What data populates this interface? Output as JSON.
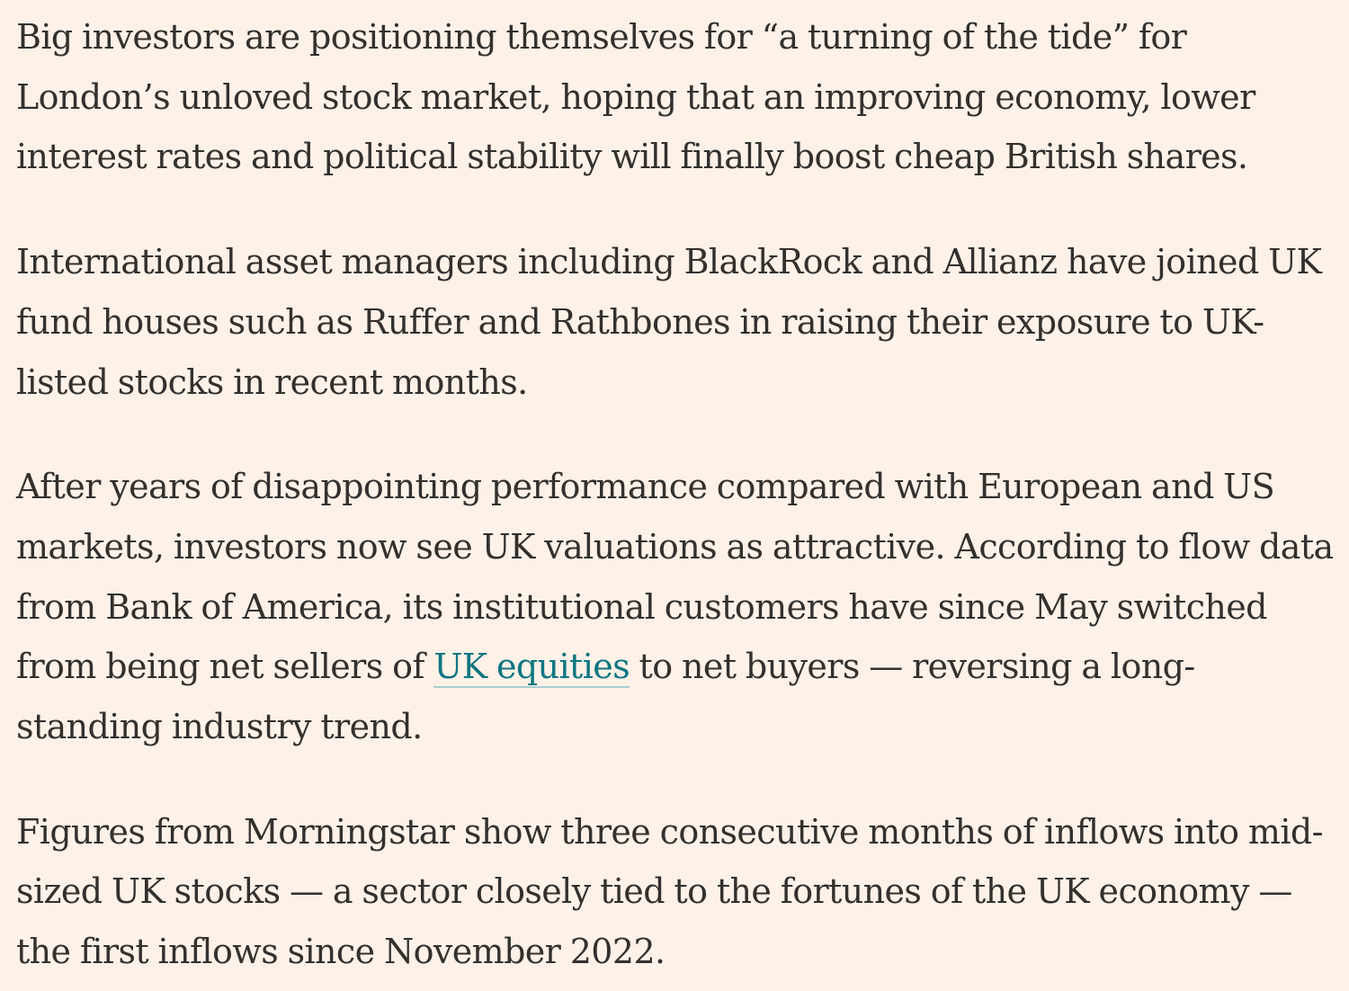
{
  "article": {
    "p1": "Big investors are positioning themselves for “a turning of the tide” for London’s unloved stock market, hoping that an improving economy, lower interest rates and political stability will finally boost cheap British shares.",
    "p2": "International asset managers including BlackRock and Allianz have joined UK fund houses such as Ruffer and Rathbones in raising their exposure to UK-listed stocks in recent months.",
    "p3_before_link": "After years of disappointing performance compared with European and US markets, investors now see UK valuations as attractive. According to flow data from Bank of America, its institutional customers have since May switched from being net sellers of ",
    "p3_link": "UK equities",
    "p3_after_link": " to net buyers — reversing a long-standing industry trend.",
    "p4": "Figures from Morningstar show three consecutive months of inflows into mid-sized UK stocks — a sector closely tied to the fortunes of the UK economy — the first inflows since November 2022."
  },
  "colors": {
    "background": "#fdf1e8",
    "text": "#33302e",
    "link": "#0d7680"
  }
}
